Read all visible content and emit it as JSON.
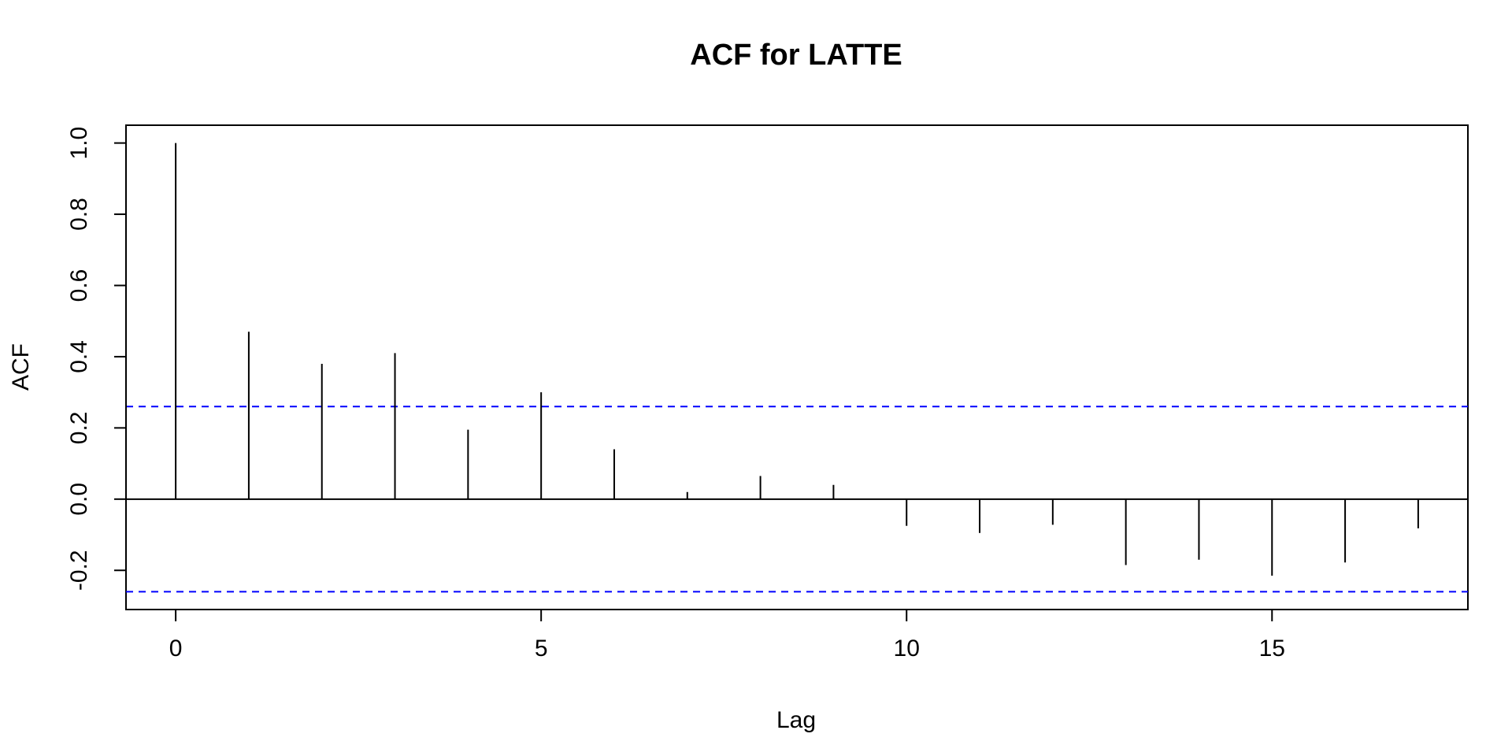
{
  "chart_data": {
    "type": "bar",
    "title": "ACF for LATTE",
    "xlabel": "Lag",
    "ylabel": "ACF",
    "x": [
      0,
      1,
      2,
      3,
      4,
      5,
      6,
      7,
      8,
      9,
      10,
      11,
      12,
      13,
      14,
      15,
      16,
      17
    ],
    "values": [
      1.0,
      0.47,
      0.38,
      0.41,
      0.195,
      0.3,
      0.14,
      0.02,
      0.065,
      0.04,
      -0.075,
      -0.095,
      -0.072,
      -0.185,
      -0.17,
      -0.215,
      -0.178,
      -0.082
    ],
    "confidence_bound": 0.26,
    "xlim": [
      -0.68,
      17.68
    ],
    "ylim": [
      -0.31,
      1.05
    ],
    "x_ticks": [
      0,
      5,
      10,
      15
    ],
    "x_tick_labels": [
      "0",
      "5",
      "10",
      "15"
    ],
    "y_ticks": [
      -0.2,
      0.0,
      0.2,
      0.4,
      0.6,
      0.8,
      1.0
    ],
    "y_tick_labels": [
      "-0.2",
      "0.0",
      "0.2",
      "0.4",
      "0.6",
      "0.8",
      "1.0"
    ],
    "grid": false,
    "zero_line": true,
    "colors": {
      "bars": "#000000",
      "confidence": "#0000ff",
      "axis": "#000000"
    }
  }
}
